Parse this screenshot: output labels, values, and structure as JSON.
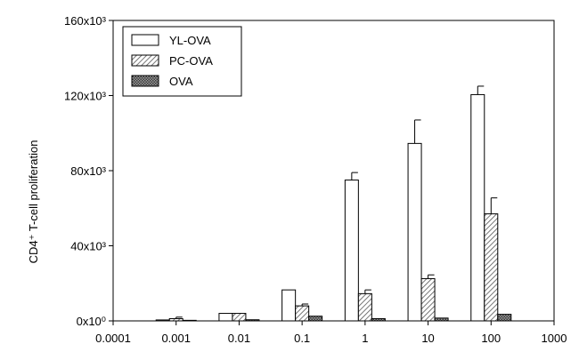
{
  "chart_data": {
    "type": "bar",
    "title": "",
    "xlabel": "",
    "ylabel": "CD4⁺ T-cell proliferation",
    "x_scale": "log",
    "x_ticks": [
      "0.0001",
      "0.001",
      "0.01",
      "0.1",
      "1",
      "10",
      "100",
      "1000"
    ],
    "y_ticks": [
      "0x10⁰",
      "40x10³",
      "80x10³",
      "120x10³",
      "160x10³"
    ],
    "ylim": [
      0,
      160000
    ],
    "categories": [
      0.001,
      0.01,
      0.1,
      1,
      10,
      100
    ],
    "series": [
      {
        "name": "YL-OVA",
        "values": [
          500,
          4000,
          16500,
          75000,
          94500,
          120500
        ],
        "errors": [
          0,
          0,
          0,
          4000,
          12500,
          4500
        ]
      },
      {
        "name": "PC-OVA",
        "values": [
          1200,
          4000,
          8000,
          14500,
          22500,
          57000
        ],
        "errors": [
          800,
          0,
          1000,
          2000,
          2000,
          8500
        ]
      },
      {
        "name": "OVA",
        "values": [
          300,
          600,
          2500,
          1200,
          1500,
          3500
        ],
        "errors": [
          0,
          0,
          0,
          0,
          0,
          0
        ]
      }
    ],
    "grid": false,
    "legend_position": "top-left"
  }
}
